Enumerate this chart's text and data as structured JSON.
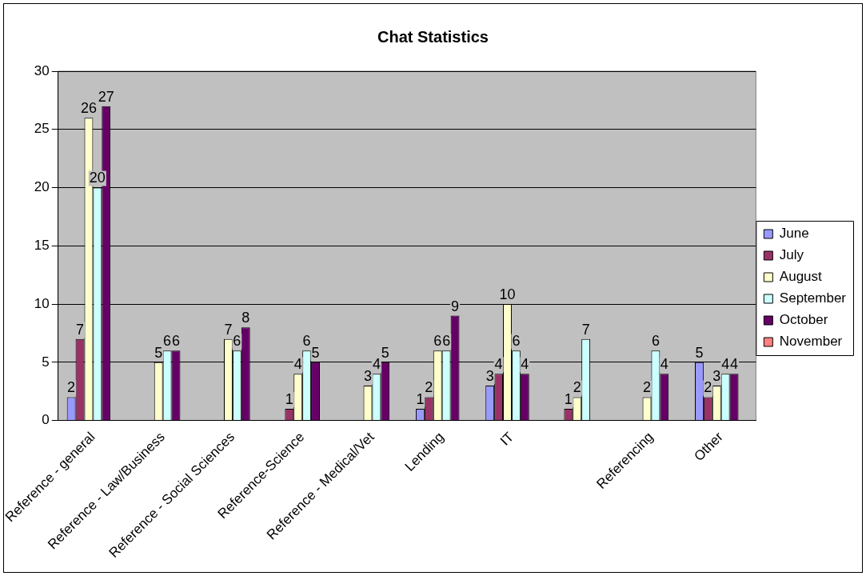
{
  "chart_data": {
    "type": "bar",
    "title": "Chat Statistics",
    "categories": [
      "Reference - general",
      "Reference - Law/Business",
      "Reference - Social Sciences",
      "Reference-Science",
      "Reference - Medical/Vet",
      "Lending",
      "IT",
      null,
      "Referencing",
      "Other"
    ],
    "series": [
      {
        "name": "June",
        "color": "#9999ff",
        "values": [
          2,
          null,
          null,
          null,
          null,
          1,
          3,
          null,
          null,
          5
        ]
      },
      {
        "name": "July",
        "color": "#993366",
        "values": [
          7,
          null,
          null,
          1,
          null,
          2,
          4,
          1,
          null,
          2
        ]
      },
      {
        "name": "August",
        "color": "#ffffcc",
        "values": [
          26,
          5,
          7,
          4,
          3,
          6,
          10,
          2,
          2,
          3
        ]
      },
      {
        "name": "September",
        "color": "#ccffff",
        "values": [
          20,
          6,
          6,
          6,
          4,
          6,
          6,
          7,
          6,
          4
        ]
      },
      {
        "name": "October",
        "color": "#660066",
        "values": [
          27,
          6,
          8,
          5,
          5,
          9,
          4,
          null,
          4,
          4
        ]
      },
      {
        "name": "November",
        "color": "#ff8080",
        "values": [
          null,
          null,
          null,
          null,
          null,
          null,
          null,
          null,
          null,
          null
        ]
      }
    ],
    "ylim": [
      0,
      30
    ],
    "yticks": [
      0,
      5,
      10,
      15,
      20,
      25,
      30
    ],
    "grid": "y",
    "legend": "right",
    "data_labels": true
  }
}
